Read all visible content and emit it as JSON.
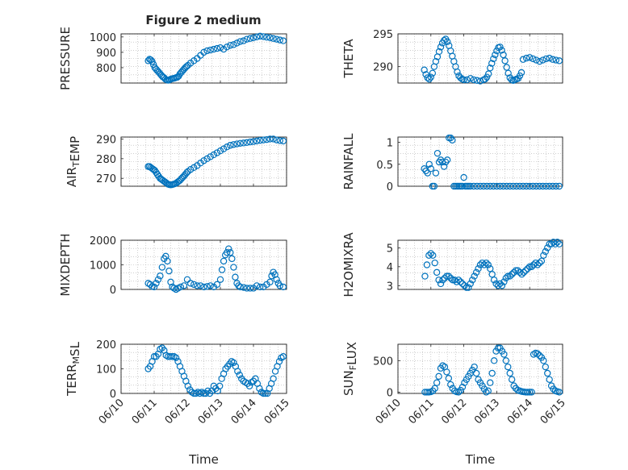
{
  "figure": {
    "title": "Figure 2 medium",
    "marker_color": "#0072bd",
    "time_ticks": [
      "06/10",
      "06/11",
      "06/12",
      "06/13",
      "06/14",
      "06/15"
    ],
    "xlabel": "Time"
  },
  "chart_data": [
    {
      "type": "scatter",
      "ylabel": "PRESSURE",
      "ylim": [
        700,
        1020
      ],
      "yticks": [
        800,
        900,
        1000
      ],
      "xlim": [
        0,
        5
      ],
      "grid": true,
      "x": [
        0.82,
        0.86,
        0.9,
        0.94,
        0.98,
        1.02,
        1.06,
        1.1,
        1.14,
        1.18,
        1.22,
        1.26,
        1.3,
        1.34,
        1.38,
        1.42,
        1.46,
        1.5,
        1.54,
        1.58,
        1.62,
        1.66,
        1.7,
        1.74,
        1.78,
        1.82,
        1.86,
        1.9,
        1.94,
        1.98,
        2.02,
        2.1,
        2.2,
        2.3,
        2.4,
        2.5,
        2.6,
        2.7,
        2.8,
        2.9,
        3.0,
        3.1,
        3.2,
        3.3,
        3.4,
        3.5,
        3.6,
        3.7,
        3.8,
        3.9,
        4.0,
        4.1,
        4.2,
        4.3,
        4.4,
        4.5,
        4.6,
        4.7,
        4.8,
        4.9
      ],
      "y": [
        845,
        855,
        850,
        840,
        820,
        800,
        790,
        780,
        770,
        760,
        750,
        740,
        735,
        725,
        720,
        718,
        720,
        725,
        728,
        730,
        732,
        735,
        738,
        745,
        760,
        770,
        780,
        790,
        800,
        808,
        815,
        830,
        845,
        860,
        880,
        900,
        910,
        915,
        920,
        925,
        930,
        920,
        935,
        945,
        950,
        960,
        970,
        975,
        985,
        990,
        995,
        1000,
        1005,
        1002,
        998,
        995,
        990,
        985,
        980,
        975
      ]
    },
    {
      "type": "scatter",
      "ylabel": "THETA",
      "ylim": [
        287.5,
        295
      ],
      "yticks": [
        290,
        295
      ],
      "xlim": [
        0,
        5
      ],
      "grid": true,
      "x": [
        0.8,
        0.85,
        0.9,
        0.95,
        1.0,
        1.05,
        1.1,
        1.15,
        1.2,
        1.25,
        1.3,
        1.35,
        1.4,
        1.45,
        1.5,
        1.55,
        1.6,
        1.65,
        1.7,
        1.75,
        1.8,
        1.85,
        1.9,
        1.95,
        2.0,
        2.1,
        2.2,
        2.3,
        2.4,
        2.5,
        2.6,
        2.65,
        2.7,
        2.75,
        2.8,
        2.85,
        2.9,
        2.95,
        3.0,
        3.05,
        3.1,
        3.15,
        3.2,
        3.25,
        3.3,
        3.35,
        3.4,
        3.45,
        3.5,
        3.55,
        3.6,
        3.65,
        3.7,
        3.75,
        3.8,
        3.9,
        4.0,
        4.1,
        4.2,
        4.3,
        4.4,
        4.5,
        4.6,
        4.7,
        4.8,
        4.9
      ],
      "y": [
        289.5,
        288.8,
        288.3,
        288.1,
        288.4,
        289.0,
        290.0,
        290.8,
        291.5,
        292.3,
        293.0,
        293.6,
        294.0,
        294.2,
        293.8,
        293.2,
        292.4,
        291.6,
        290.8,
        290.0,
        289.2,
        288.6,
        288.3,
        288.1,
        288.0,
        288.0,
        288.2,
        288.0,
        287.9,
        287.8,
        288.0,
        288.1,
        288.4,
        288.9,
        289.8,
        290.5,
        291.2,
        291.8,
        292.4,
        292.9,
        293.0,
        292.5,
        291.8,
        290.9,
        289.9,
        289.0,
        288.3,
        288.0,
        287.9,
        288.0,
        288.1,
        288.2,
        288.6,
        289.1,
        291.1,
        291.3,
        291.4,
        291.2,
        291.0,
        290.8,
        291.0,
        291.2,
        291.3,
        291.1,
        291.0,
        290.9
      ]
    },
    {
      "type": "scatter",
      "ylabel": "AIR_TEMP",
      "ylim": [
        266,
        291
      ],
      "yticks": [
        270,
        280,
        290
      ],
      "xlim": [
        0,
        5
      ],
      "grid": true,
      "x": [
        0.82,
        0.86,
        0.9,
        0.94,
        0.98,
        1.02,
        1.06,
        1.1,
        1.14,
        1.18,
        1.22,
        1.26,
        1.3,
        1.34,
        1.38,
        1.42,
        1.46,
        1.5,
        1.54,
        1.58,
        1.62,
        1.66,
        1.7,
        1.74,
        1.78,
        1.82,
        1.86,
        1.9,
        1.94,
        1.98,
        2.02,
        2.1,
        2.2,
        2.3,
        2.4,
        2.5,
        2.6,
        2.7,
        2.8,
        2.9,
        3.0,
        3.1,
        3.2,
        3.3,
        3.4,
        3.5,
        3.6,
        3.7,
        3.8,
        3.9,
        4.0,
        4.1,
        4.2,
        4.3,
        4.4,
        4.5,
        4.6,
        4.7,
        4.8,
        4.9
      ],
      "y": [
        276,
        276,
        275.5,
        275,
        274.5,
        274,
        273,
        272,
        271,
        270,
        269.5,
        269,
        268.5,
        268,
        267.5,
        267,
        266.8,
        266.7,
        266.8,
        267,
        267.2,
        267.5,
        268,
        268.5,
        269,
        269.8,
        270.5,
        271.2,
        272,
        272.8,
        273.5,
        274.5,
        275.5,
        276.5,
        277.8,
        279,
        280,
        281,
        282,
        283,
        284,
        285,
        286,
        286.8,
        287.2,
        287.5,
        287.8,
        288,
        288.2,
        288.5,
        288.7,
        289,
        289.3,
        289.5,
        289.7,
        290,
        290,
        289.5,
        289.2,
        289
      ]
    },
    {
      "type": "scatter",
      "ylabel": "RAINFALL",
      "ylim": [
        0,
        1.12
      ],
      "yticks": [
        0,
        0.5,
        1
      ],
      "xlim": [
        0,
        5
      ],
      "grid": true,
      "x": [
        0.8,
        0.85,
        0.9,
        0.95,
        1.0,
        1.05,
        1.1,
        1.15,
        1.2,
        1.25,
        1.3,
        1.35,
        1.4,
        1.45,
        1.5,
        1.55,
        1.6,
        1.65,
        1.7,
        1.75,
        1.8,
        1.85,
        1.9,
        1.95,
        2.0,
        2.05,
        2.1,
        2.15,
        2.2,
        2.3,
        2.4,
        2.5,
        2.6,
        2.7,
        2.8,
        2.9,
        3.0,
        3.1,
        3.2,
        3.3,
        3.4,
        3.5,
        3.6,
        3.7,
        3.8,
        3.9,
        4.0,
        4.1,
        4.2,
        4.3,
        4.4,
        4.5,
        4.6,
        4.7,
        4.8,
        4.9
      ],
      "y": [
        0.4,
        0.35,
        0.3,
        0.5,
        0.4,
        0,
        0,
        0.3,
        0.75,
        0.55,
        0.6,
        0.55,
        0.45,
        0.55,
        0.6,
        1.1,
        1.1,
        1.05,
        0,
        0,
        0,
        0,
        0,
        0,
        0.2,
        0,
        0,
        0,
        0,
        0,
        0,
        0,
        0,
        0,
        0,
        0,
        0,
        0,
        0,
        0,
        0,
        0,
        0,
        0,
        0,
        0,
        0,
        0,
        0,
        0,
        0,
        0,
        0,
        0,
        0,
        0
      ]
    },
    {
      "type": "scatter",
      "ylabel": "MIXDEPTH",
      "ylim": [
        0,
        2000
      ],
      "yticks": [
        0,
        1000,
        2000
      ],
      "xlim": [
        0,
        5
      ],
      "grid": true,
      "x": [
        0.82,
        0.88,
        0.94,
        1.0,
        1.06,
        1.12,
        1.18,
        1.24,
        1.3,
        1.35,
        1.4,
        1.45,
        1.5,
        1.55,
        1.6,
        1.66,
        1.72,
        1.8,
        1.9,
        2.0,
        2.1,
        2.2,
        2.3,
        2.4,
        2.5,
        2.6,
        2.7,
        2.8,
        2.9,
        3.0,
        3.05,
        3.1,
        3.15,
        3.2,
        3.25,
        3.3,
        3.35,
        3.4,
        3.45,
        3.5,
        3.55,
        3.6,
        3.7,
        3.8,
        3.9,
        4.0,
        4.1,
        4.2,
        4.3,
        4.4,
        4.5,
        4.55,
        4.6,
        4.65,
        4.7,
        4.75,
        4.8,
        4.9
      ],
      "y": [
        250,
        200,
        120,
        100,
        250,
        400,
        550,
        900,
        1250,
        1350,
        1150,
        750,
        300,
        100,
        50,
        0,
        50,
        100,
        150,
        400,
        250,
        200,
        150,
        150,
        100,
        120,
        150,
        100,
        200,
        400,
        800,
        1150,
        1400,
        1500,
        1650,
        1500,
        1250,
        900,
        500,
        250,
        150,
        100,
        80,
        50,
        50,
        50,
        150,
        100,
        100,
        200,
        300,
        550,
        700,
        600,
        400,
        250,
        150,
        100
      ]
    },
    {
      "type": "scatter",
      "ylabel": "H2OMIXRA",
      "ylim": [
        2.8,
        5.4
      ],
      "yticks": [
        3,
        4,
        5
      ],
      "xlim": [
        0,
        5
      ],
      "grid": true,
      "x": [
        0.82,
        0.88,
        0.94,
        1.0,
        1.06,
        1.12,
        1.18,
        1.24,
        1.3,
        1.36,
        1.42,
        1.48,
        1.54,
        1.6,
        1.66,
        1.72,
        1.78,
        1.84,
        1.9,
        1.96,
        2.02,
        2.08,
        2.14,
        2.2,
        2.26,
        2.32,
        2.38,
        2.44,
        2.5,
        2.56,
        2.62,
        2.68,
        2.74,
        2.8,
        2.86,
        2.92,
        2.98,
        3.04,
        3.1,
        3.16,
        3.22,
        3.28,
        3.34,
        3.4,
        3.46,
        3.52,
        3.58,
        3.64,
        3.7,
        3.76,
        3.82,
        3.88,
        3.94,
        4.0,
        4.06,
        4.12,
        4.18,
        4.24,
        4.3,
        4.36,
        4.42,
        4.48,
        4.54,
        4.6,
        4.66,
        4.72,
        4.78,
        4.84,
        4.9
      ],
      "y": [
        3.5,
        4.1,
        4.6,
        4.7,
        4.6,
        4.2,
        3.7,
        3.3,
        3.1,
        3.3,
        3.4,
        3.5,
        3.5,
        3.4,
        3.3,
        3.3,
        3.2,
        3.3,
        3.2,
        3.1,
        3.0,
        2.9,
        2.9,
        3.1,
        3.3,
        3.5,
        3.7,
        3.9,
        4.1,
        4.2,
        4.1,
        4.2,
        4.1,
        3.9,
        3.6,
        3.3,
        3.1,
        3.0,
        3.1,
        3.0,
        3.2,
        3.4,
        3.5,
        3.5,
        3.6,
        3.7,
        3.8,
        3.8,
        3.7,
        3.6,
        3.7,
        3.8,
        3.9,
        4.0,
        4.0,
        4.1,
        4.2,
        4.1,
        4.2,
        4.3,
        4.6,
        4.8,
        5.0,
        5.2,
        5.2,
        5.3,
        5.2,
        5.3,
        5.2
      ]
    },
    {
      "type": "scatter",
      "ylabel": "TERR_MSL",
      "ylim": [
        0,
        200
      ],
      "yticks": [
        0,
        100,
        200
      ],
      "xlim": [
        0,
        5
      ],
      "grid": true,
      "x": [
        0.82,
        0.88,
        0.94,
        1.0,
        1.06,
        1.12,
        1.18,
        1.24,
        1.3,
        1.36,
        1.42,
        1.48,
        1.54,
        1.6,
        1.66,
        1.72,
        1.78,
        1.84,
        1.9,
        1.96,
        2.02,
        2.08,
        2.14,
        2.2,
        2.26,
        2.32,
        2.38,
        2.44,
        2.5,
        2.56,
        2.62,
        2.68,
        2.74,
        2.8,
        2.86,
        2.92,
        2.98,
        3.04,
        3.1,
        3.16,
        3.22,
        3.28,
        3.34,
        3.4,
        3.46,
        3.52,
        3.58,
        3.64,
        3.7,
        3.76,
        3.82,
        3.88,
        3.94,
        4.0,
        4.06,
        4.12,
        4.18,
        4.24,
        4.3,
        4.36,
        4.42,
        4.48,
        4.54,
        4.6,
        4.66,
        4.72,
        4.78,
        4.84,
        4.9
      ],
      "y": [
        100,
        110,
        130,
        150,
        150,
        160,
        180,
        185,
        175,
        155,
        150,
        150,
        150,
        150,
        145,
        130,
        110,
        90,
        70,
        50,
        30,
        15,
        5,
        0,
        0,
        5,
        0,
        5,
        0,
        0,
        10,
        0,
        10,
        30,
        20,
        10,
        30,
        60,
        80,
        100,
        110,
        120,
        130,
        125,
        110,
        90,
        75,
        60,
        50,
        45,
        40,
        30,
        45,
        50,
        60,
        40,
        20,
        5,
        0,
        0,
        0,
        20,
        40,
        60,
        90,
        110,
        130,
        145,
        150
      ]
    },
    {
      "type": "scatter",
      "ylabel": "SUN_FLUX",
      "ylim": [
        -20,
        760
      ],
      "yticks": [
        0,
        500
      ],
      "xlim": [
        0,
        5
      ],
      "grid": true,
      "x": [
        0.82,
        0.88,
        0.94,
        1.0,
        1.06,
        1.12,
        1.18,
        1.24,
        1.3,
        1.36,
        1.42,
        1.48,
        1.54,
        1.6,
        1.66,
        1.72,
        1.78,
        1.84,
        1.9,
        1.96,
        2.02,
        2.08,
        2.14,
        2.2,
        2.26,
        2.32,
        2.38,
        2.44,
        2.5,
        2.56,
        2.62,
        2.68,
        2.74,
        2.8,
        2.86,
        2.92,
        2.98,
        3.04,
        3.1,
        3.16,
        3.22,
        3.28,
        3.34,
        3.4,
        3.46,
        3.52,
        3.58,
        3.64,
        3.7,
        3.76,
        3.82,
        3.88,
        3.94,
        4.0,
        4.06,
        4.12,
        4.18,
        4.24,
        4.3,
        4.36,
        4.42,
        4.48,
        4.54,
        4.6,
        4.66,
        4.72,
        4.78,
        4.84,
        4.9
      ],
      "y": [
        0,
        0,
        0,
        5,
        20,
        60,
        150,
        250,
        380,
        420,
        400,
        320,
        220,
        120,
        60,
        20,
        5,
        0,
        30,
        80,
        150,
        200,
        250,
        300,
        350,
        400,
        300,
        200,
        150,
        100,
        50,
        0,
        20,
        150,
        300,
        500,
        650,
        700,
        700,
        650,
        600,
        500,
        400,
        300,
        200,
        100,
        60,
        30,
        20,
        10,
        5,
        0,
        0,
        0,
        0,
        600,
        620,
        610,
        580,
        550,
        500,
        400,
        300,
        200,
        100,
        50,
        20,
        10,
        0
      ]
    }
  ]
}
